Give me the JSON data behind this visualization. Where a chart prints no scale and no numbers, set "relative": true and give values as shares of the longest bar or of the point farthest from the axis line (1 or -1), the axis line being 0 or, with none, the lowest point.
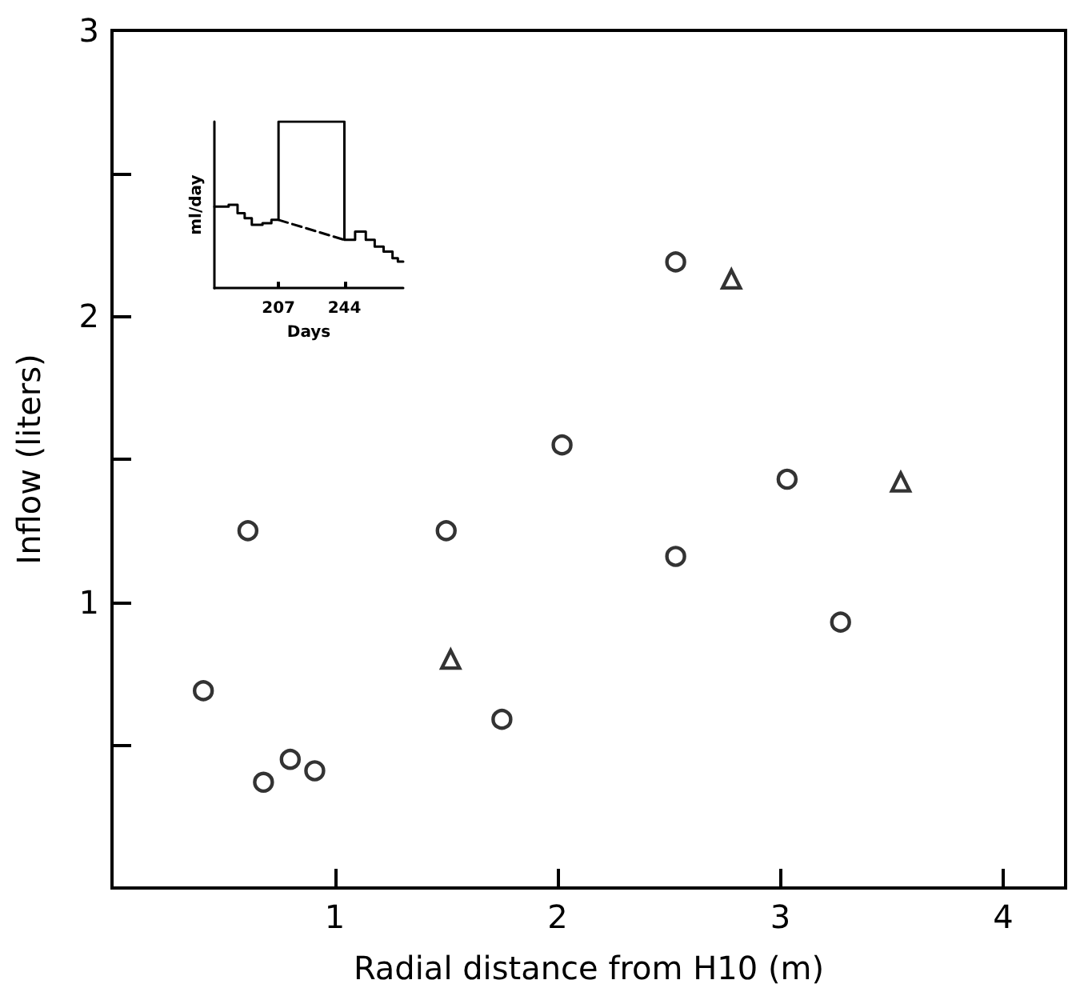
{
  "chart_data": [
    {
      "type": "scatter",
      "xlabel": "Radial distance from H10 (m)",
      "ylabel": "Inflow (liters)",
      "xlim": [
        0,
        4.28
      ],
      "ylim": [
        0,
        3
      ],
      "xticks": [
        1,
        2,
        3,
        4
      ],
      "yticks": [
        {
          "value": 0.5,
          "label": null
        },
        1,
        {
          "value": 1.5,
          "label": null
        },
        2,
        {
          "value": 2.5,
          "label": null
        },
        3
      ],
      "grid": false,
      "series": [
        {
          "color": "#000000",
          "marker": "circle",
          "x": [
            0.41,
            0.61,
            0.68,
            0.8,
            0.91,
            1.5,
            1.75,
            2.02,
            2.53,
            2.53,
            3.03,
            3.27
          ],
          "values": [
            0.69,
            1.25,
            0.37,
            0.45,
            0.41,
            1.25,
            0.59,
            1.55,
            2.19,
            1.16,
            1.43,
            0.93
          ]
        },
        {
          "color": "#000000",
          "marker": "triangle",
          "x": [
            1.52,
            2.78,
            3.54
          ],
          "values": [
            0.8,
            2.13,
            1.42
          ]
        }
      ]
    },
    {
      "type": "step",
      "relative": true,
      "xlabel": "Days",
      "ylabel": "ml/day",
      "xlim": [
        171,
        277
      ],
      "xticks": [
        207,
        244
      ],
      "tick_labels": "x",
      "grid": false,
      "series": [
        {
          "color": "#000000",
          "x": [
            171,
            179,
            184,
            188,
            192,
            198,
            203,
            207,
            244,
            250,
            256,
            261,
            266,
            271,
            274,
            277
          ],
          "values": [
            0.49,
            0.5,
            0.45,
            0.42,
            0.38,
            0.39,
            0.41,
            1,
            0.29,
            0.34,
            0.29,
            0.25,
            0.22,
            0.18,
            0.16,
            0.16
          ]
        },
        {
          "type": "line",
          "color": "#000000",
          "line_style": "dashed",
          "marker": "none",
          "x": [
            207,
            244
          ],
          "values": [
            0.41,
            0.29
          ]
        }
      ]
    }
  ]
}
